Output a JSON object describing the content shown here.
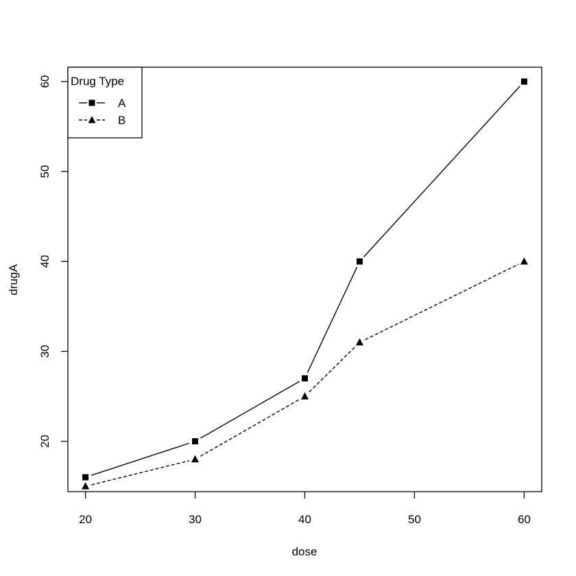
{
  "chart_data": {
    "type": "line",
    "xlabel": "dose",
    "ylabel": "drugA",
    "xlim": [
      18.4,
      61.6
    ],
    "ylim": [
      14.4,
      61.6
    ],
    "xticks": [
      20,
      30,
      40,
      50,
      60
    ],
    "yticks": [
      20,
      30,
      40,
      50,
      60
    ],
    "x": [
      20,
      30,
      40,
      45,
      60
    ],
    "series": [
      {
        "name": "A",
        "values": [
          16,
          20,
          27,
          40,
          60
        ],
        "line_style": "solid",
        "marker": "square"
      },
      {
        "name": "B",
        "values": [
          15,
          18,
          25,
          31,
          40
        ],
        "line_style": "dashed",
        "marker": "triangle"
      }
    ],
    "legend": {
      "title": "Drug Type",
      "position": "top-left"
    },
    "grid": false
  }
}
